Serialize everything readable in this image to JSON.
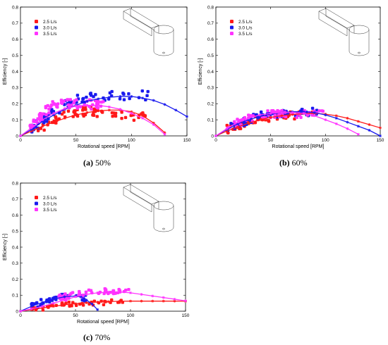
{
  "colors": {
    "red": "#ff1a1a",
    "blue": "#1a1aee",
    "magenta": "#ff33ff"
  },
  "icons": [
    "channel-and-tank-schematic-icon"
  ],
  "chart_data": [
    {
      "type": "scatter",
      "caption_label": "(a)",
      "caption_text": "50%",
      "xlabel": "Rotational speed [RPM]",
      "ylabel": "Efficiency [-]",
      "xlim": [
        0,
        150
      ],
      "ylim": [
        0,
        0.8
      ],
      "xticks": [
        "0",
        "50",
        "100",
        "150"
      ],
      "yticks": [
        "0",
        "0.1",
        "0.2",
        "0.3",
        "0.4",
        "0.5",
        "0.6",
        "0.7",
        "0.8"
      ],
      "legend_position": "top-left",
      "series": [
        {
          "name": "2.5 L/s",
          "color": "red",
          "fit_x": [
            0,
            10,
            20,
            30,
            40,
            50,
            60,
            70,
            80,
            90,
            100,
            110,
            120,
            130
          ],
          "fit_y": [
            0,
            0.03,
            0.06,
            0.085,
            0.11,
            0.13,
            0.145,
            0.155,
            0.16,
            0.16,
            0.15,
            0.125,
            0.08,
            0.02
          ],
          "scatter": {
            "xmin": 15,
            "xmax": 115,
            "ycenter": [
              0.04,
              0.15,
              0.15,
              0.11
            ],
            "spread": 0.03,
            "n": 70
          }
        },
        {
          "name": "3.0 L/s",
          "color": "blue",
          "fit_x": [
            0,
            10,
            20,
            30,
            40,
            50,
            60,
            70,
            80,
            90,
            100,
            110,
            120,
            130,
            140,
            150
          ],
          "fit_y": [
            0,
            0.04,
            0.09,
            0.13,
            0.165,
            0.19,
            0.215,
            0.23,
            0.24,
            0.245,
            0.245,
            0.235,
            0.22,
            0.195,
            0.16,
            0.12
          ],
          "scatter": {
            "xmin": 10,
            "xmax": 115,
            "ycenter": [
              0.05,
              0.22,
              0.25,
              0.25
            ],
            "spread": 0.03,
            "n": 70
          }
        },
        {
          "name": "3.5 L/s",
          "color": "magenta",
          "fit_x": [
            0,
            10,
            20,
            30,
            40,
            50,
            60,
            70,
            80,
            90,
            100,
            110,
            120,
            130
          ],
          "fit_y": [
            0,
            0.05,
            0.1,
            0.14,
            0.17,
            0.185,
            0.19,
            0.19,
            0.18,
            0.165,
            0.14,
            0.11,
            0.07,
            0.01
          ],
          "scatter": {
            "xmin": 8,
            "xmax": 75,
            "ycenter": [
              0.06,
              0.2,
              0.2,
              0.19
            ],
            "spread": 0.03,
            "n": 70
          }
        }
      ]
    },
    {
      "type": "scatter",
      "caption_label": "(b)",
      "caption_text": "60%",
      "xlabel": "Rotational speed [RPM]",
      "ylabel": "Efficiency [-]",
      "xlim": [
        0,
        150
      ],
      "ylim": [
        0,
        0.8
      ],
      "xticks": [
        "0",
        "50",
        "100",
        "150"
      ],
      "yticks": [
        "0",
        "0.1",
        "0.2",
        "0.3",
        "0.4",
        "0.5",
        "0.6",
        "0.7",
        "0.8"
      ],
      "legend_position": "top-left",
      "series": [
        {
          "name": "2.5 L/s",
          "color": "red",
          "fit_x": [
            0,
            10,
            20,
            30,
            40,
            50,
            60,
            70,
            80,
            90,
            100,
            110,
            120,
            130,
            140,
            150
          ],
          "fit_y": [
            0,
            0.03,
            0.055,
            0.08,
            0.1,
            0.115,
            0.125,
            0.133,
            0.138,
            0.14,
            0.135,
            0.125,
            0.11,
            0.09,
            0.07,
            0.05
          ],
          "scatter": {
            "xmin": 10,
            "xmax": 90,
            "ycenter": [
              0.04,
              0.1,
              0.13,
              0.13
            ],
            "spread": 0.025,
            "n": 60
          }
        },
        {
          "name": "3.0 L/s",
          "color": "blue",
          "fit_x": [
            0,
            10,
            20,
            30,
            40,
            50,
            60,
            70,
            80,
            90,
            100,
            110,
            120,
            130,
            140,
            150
          ],
          "fit_y": [
            0,
            0.04,
            0.075,
            0.1,
            0.12,
            0.135,
            0.145,
            0.15,
            0.15,
            0.145,
            0.13,
            0.11,
            0.085,
            0.06,
            0.035,
            0.0
          ],
          "scatter": {
            "xmin": 10,
            "xmax": 95,
            "ycenter": [
              0.05,
              0.12,
              0.15,
              0.15
            ],
            "spread": 0.025,
            "n": 60
          }
        },
        {
          "name": "3.5 L/s",
          "color": "magenta",
          "fit_x": [
            0,
            10,
            20,
            30,
            40,
            50,
            60,
            70,
            80,
            90,
            100,
            110,
            120,
            130
          ],
          "fit_y": [
            0,
            0.045,
            0.085,
            0.11,
            0.13,
            0.14,
            0.145,
            0.145,
            0.14,
            0.125,
            0.1,
            0.075,
            0.045,
            0.01
          ],
          "scatter": {
            "xmin": 10,
            "xmax": 100,
            "ycenter": [
              0.06,
              0.13,
              0.14,
              0.13
            ],
            "spread": 0.025,
            "n": 60
          }
        }
      ]
    },
    {
      "type": "scatter",
      "caption_label": "(c)",
      "caption_text": "70%",
      "xlabel": "Rotational speed [RPM]",
      "ylabel": "Efficiency [-]",
      "xlim": [
        0,
        150
      ],
      "ylim": [
        0,
        0.8
      ],
      "xticks": [
        "0",
        "50",
        "100",
        "150"
      ],
      "yticks": [
        "0",
        "0.1",
        "0.2",
        "0.3",
        "0.4",
        "0.5",
        "0.6",
        "0.7",
        "0.8"
      ],
      "legend_position": "top-left",
      "series": [
        {
          "name": "2.5 L/s",
          "color": "red",
          "fit_x": [
            0,
            10,
            20,
            30,
            40,
            50,
            60,
            70,
            80,
            90,
            100,
            110,
            120,
            130,
            140,
            150
          ],
          "fit_y": [
            0,
            0.01,
            0.02,
            0.03,
            0.04,
            0.047,
            0.053,
            0.057,
            0.06,
            0.062,
            0.063,
            0.063,
            0.063,
            0.063,
            0.063,
            0.062
          ],
          "scatter": {
            "xmin": 10,
            "xmax": 95,
            "ycenter": [
              0.01,
              0.04,
              0.05,
              0.06
            ],
            "spread": 0.015,
            "n": 45
          }
        },
        {
          "name": "3.0 L/s",
          "color": "blue",
          "fit_x": [
            0,
            10,
            20,
            30,
            40,
            50,
            55,
            60,
            65,
            70
          ],
          "fit_y": [
            0,
            0.03,
            0.055,
            0.075,
            0.09,
            0.095,
            0.09,
            0.07,
            0.045,
            0.01
          ],
          "scatter": {
            "xmin": 10,
            "xmax": 62,
            "ycenter": [
              0.03,
              0.08,
              0.1,
              0.08
            ],
            "spread": 0.02,
            "n": 40
          }
        },
        {
          "name": "3.5 L/s",
          "color": "magenta",
          "fit_x": [
            0,
            10,
            20,
            30,
            40,
            50,
            60,
            70,
            80,
            90,
            100,
            110,
            120,
            130,
            140,
            150
          ],
          "fit_y": [
            0,
            0.015,
            0.03,
            0.05,
            0.07,
            0.09,
            0.105,
            0.115,
            0.12,
            0.12,
            0.115,
            0.105,
            0.095,
            0.085,
            0.075,
            0.065
          ],
          "scatter": {
            "xmin": 35,
            "xmax": 100,
            "ycenter": [
              0.08,
              0.11,
              0.13,
              0.12
            ],
            "spread": 0.02,
            "n": 50
          }
        }
      ]
    }
  ]
}
